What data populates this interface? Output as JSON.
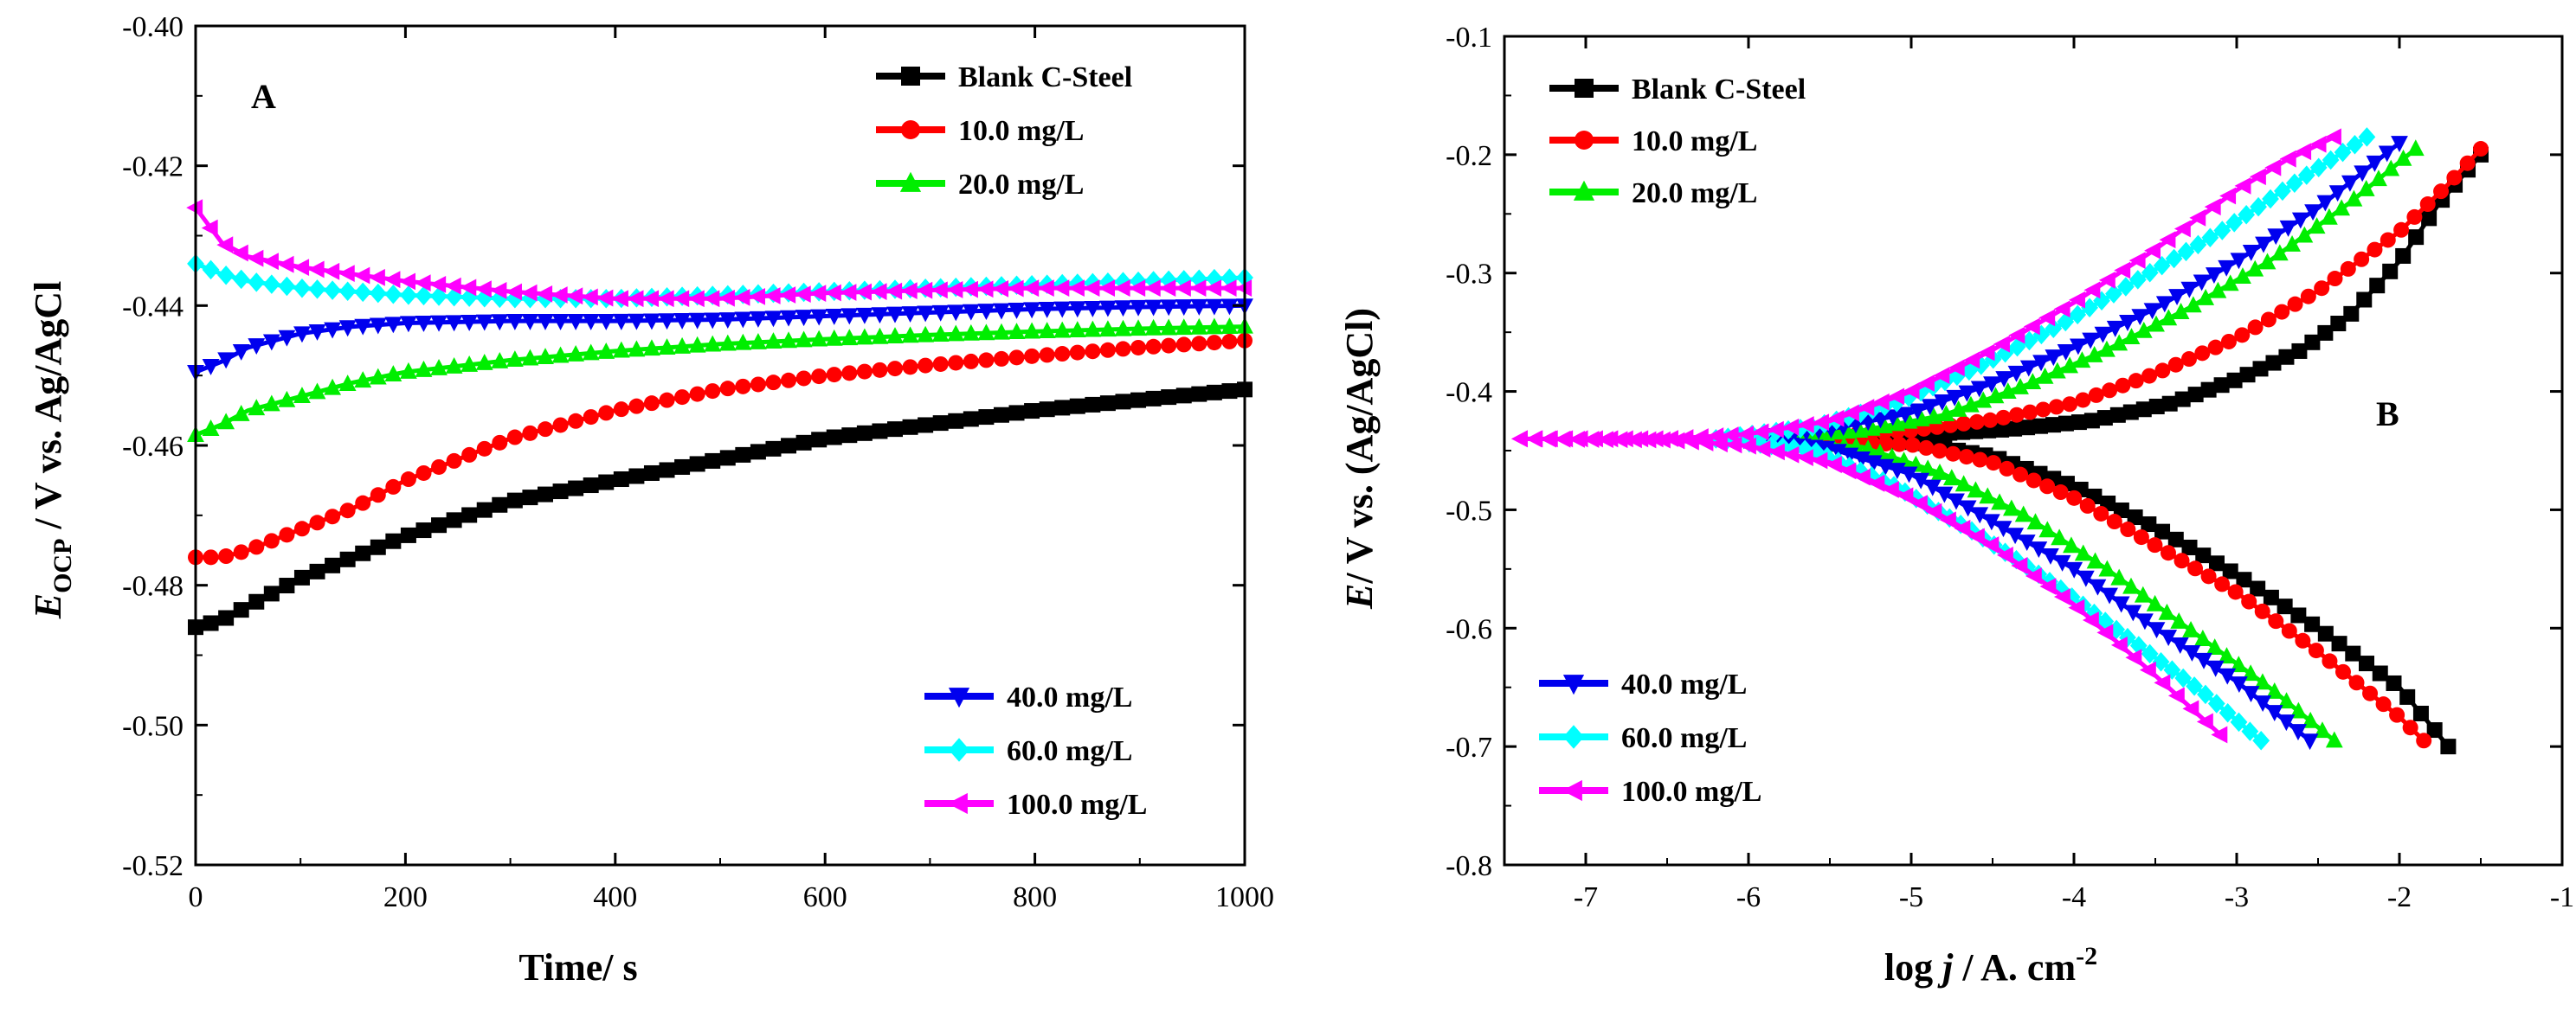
{
  "chart_data": [
    {
      "id": "A",
      "type": "line",
      "panel_label": "A",
      "xlabel": "Time/ s",
      "ylabel_main": "E",
      "ylabel_sub": "OCP",
      "ylabel_rest": " / V vs. Ag/AgCl",
      "xlim": [
        0,
        1000
      ],
      "ylim": [
        -0.52,
        -0.4
      ],
      "xticks": [
        0,
        200,
        400,
        600,
        800,
        1000
      ],
      "xtick_labels": [
        "0",
        "200",
        "400",
        "600",
        "800",
        "1000"
      ],
      "yticks": [
        -0.52,
        -0.5,
        -0.48,
        -0.46,
        -0.44,
        -0.42,
        -0.4
      ],
      "ytick_labels": [
        "-0.52",
        "-0.50",
        "-0.48",
        "-0.46",
        "-0.44",
        "-0.42",
        "-0.40"
      ],
      "legend_groups": [
        {
          "placement": "top-right",
          "series": [
            0,
            1,
            2
          ]
        },
        {
          "placement": "bottom-right",
          "series": [
            3,
            4,
            5
          ]
        }
      ],
      "series": [
        {
          "name": "Blank C-Steel",
          "color": "#000000",
          "marker": "square",
          "x": [
            0,
            25,
            50,
            100,
            150,
            200,
            300,
            400,
            500,
            600,
            700,
            800,
            900,
            1000
          ],
          "y": [
            -0.486,
            -0.485,
            -0.483,
            -0.479,
            -0.476,
            -0.473,
            -0.468,
            -0.465,
            -0.462,
            -0.459,
            -0.457,
            -0.455,
            -0.4535,
            -0.452
          ]
        },
        {
          "name": "10.0 mg/L",
          "color": "#ff0000",
          "marker": "circle",
          "x": [
            0,
            25,
            50,
            100,
            150,
            200,
            300,
            400,
            500,
            600,
            700,
            800,
            900,
            1000
          ],
          "y": [
            -0.476,
            -0.476,
            -0.475,
            -0.472,
            -0.469,
            -0.465,
            -0.459,
            -0.455,
            -0.452,
            -0.45,
            -0.4485,
            -0.4472,
            -0.446,
            -0.445
          ]
        },
        {
          "name": "20.0 mg/L",
          "color": "#00ee00",
          "marker": "triangle-up",
          "x": [
            0,
            25,
            50,
            100,
            150,
            200,
            300,
            400,
            500,
            600,
            700,
            800,
            900,
            1000
          ],
          "y": [
            -0.4585,
            -0.457,
            -0.455,
            -0.453,
            -0.451,
            -0.4495,
            -0.4478,
            -0.4465,
            -0.4455,
            -0.4448,
            -0.4442,
            -0.4437,
            -0.4433,
            -0.443
          ]
        },
        {
          "name": "40.0 mg/L",
          "color": "#0000ee",
          "marker": "triangle-down",
          "x": [
            0,
            25,
            50,
            100,
            150,
            200,
            300,
            400,
            500,
            600,
            700,
            800,
            900,
            1000
          ],
          "y": [
            -0.4495,
            -0.448,
            -0.446,
            -0.444,
            -0.443,
            -0.4425,
            -0.4422,
            -0.4422,
            -0.442,
            -0.4415,
            -0.441,
            -0.4405,
            -0.4402,
            -0.44
          ]
        },
        {
          "name": "60.0 mg/L",
          "color": "#00ffff",
          "marker": "diamond",
          "x": [
            0,
            25,
            50,
            100,
            150,
            200,
            300,
            400,
            500,
            600,
            700,
            800,
            900,
            1000
          ],
          "y": [
            -0.434,
            -0.4355,
            -0.4365,
            -0.4375,
            -0.438,
            -0.4385,
            -0.439,
            -0.439,
            -0.4385,
            -0.438,
            -0.4375,
            -0.437,
            -0.4365,
            -0.436
          ]
        },
        {
          "name": "100.0 mg/L",
          "color": "#ff00ff",
          "marker": "triangle-left",
          "x": [
            0,
            10,
            25,
            50,
            100,
            150,
            200,
            300,
            400,
            500,
            600,
            700,
            800,
            900,
            1000
          ],
          "y": [
            -0.426,
            -0.428,
            -0.431,
            -0.433,
            -0.4345,
            -0.4355,
            -0.4365,
            -0.438,
            -0.439,
            -0.439,
            -0.4382,
            -0.4378,
            -0.4375,
            -0.4375,
            -0.4375
          ]
        }
      ]
    },
    {
      "id": "B",
      "type": "line",
      "panel_label": "B",
      "xlabel_pre": "log ",
      "xlabel_var": "j",
      "xlabel_post": " /  A. cm",
      "xlabel_sup": "-2",
      "ylabel_var": "E",
      "ylabel_rest": "/ V vs. (Ag/AgCl)",
      "xlim": [
        -7.5,
        -1
      ],
      "ylim": [
        -0.8,
        -0.1
      ],
      "xticks": [
        -7,
        -6,
        -5,
        -4,
        -3,
        -2,
        -1
      ],
      "xtick_labels": [
        "-7",
        "-6",
        "-5",
        "-4",
        "-3",
        "-2",
        "-1"
      ],
      "yticks": [
        -0.8,
        -0.7,
        -0.6,
        -0.5,
        -0.4,
        -0.3,
        -0.2,
        -0.1
      ],
      "ytick_labels": [
        "-0.8",
        "-0.7",
        "-0.6",
        "-0.5",
        "-0.4",
        "-0.3",
        "-0.2",
        "-0.1"
      ],
      "legend_groups": [
        {
          "placement": "top-left",
          "series": [
            0,
            1,
            2
          ]
        },
        {
          "placement": "bottom-left",
          "series": [
            3,
            4,
            5
          ]
        }
      ],
      "series": [
        {
          "name": "Blank C-Steel",
          "color": "#000000",
          "marker": "square",
          "corr_potential": -0.44,
          "anodic": {
            "x": [
              -5.8,
              -5.0,
              -4.4,
              -3.9,
              -3.4,
              -3.0,
              -2.6,
              -2.3,
              -2.0,
              -1.75,
              -1.5
            ],
            "y": [
              -0.44,
              -0.437,
              -0.432,
              -0.425,
              -0.41,
              -0.39,
              -0.365,
              -0.335,
              -0.29,
              -0.24,
              -0.2
            ]
          },
          "cathodic": {
            "x": [
              -5.8,
              -5.0,
              -4.5,
              -4.0,
              -3.5,
              -3.0,
              -2.5,
              -2.0,
              -1.7
            ],
            "y": [
              -0.44,
              -0.443,
              -0.455,
              -0.48,
              -0.515,
              -0.555,
              -0.6,
              -0.65,
              -0.7
            ]
          }
        },
        {
          "name": "10.0 mg/L",
          "color": "#ff0000",
          "marker": "circle",
          "corr_potential": -0.44,
          "anodic": {
            "x": [
              -5.9,
              -5.0,
              -4.5,
              -4.0,
              -3.5,
              -3.0,
              -2.5,
              -2.0,
              -1.7,
              -1.5
            ],
            "y": [
              -0.44,
              -0.433,
              -0.424,
              -0.41,
              -0.385,
              -0.355,
              -0.315,
              -0.265,
              -0.225,
              -0.195
            ]
          },
          "cathodic": {
            "x": [
              -5.9,
              -5.0,
              -4.5,
              -4.0,
              -3.5,
              -3.0,
              -2.5,
              -2.0,
              -1.85
            ],
            "y": [
              -0.44,
              -0.445,
              -0.46,
              -0.49,
              -0.53,
              -0.57,
              -0.62,
              -0.675,
              -0.695
            ]
          }
        },
        {
          "name": "20.0 mg/L",
          "color": "#00ee00",
          "marker": "triangle-up",
          "corr_potential": -0.44,
          "anodic": {
            "x": [
              -6.0,
              -5.3,
              -4.8,
              -4.3,
              -3.8,
              -3.3,
              -2.8,
              -2.3,
              -1.9
            ],
            "y": [
              -0.44,
              -0.433,
              -0.42,
              -0.395,
              -0.365,
              -0.33,
              -0.29,
              -0.24,
              -0.195
            ]
          },
          "cathodic": {
            "x": [
              -6.0,
              -5.3,
              -4.8,
              -4.3,
              -3.8,
              -3.3,
              -2.8,
              -2.4
            ],
            "y": [
              -0.44,
              -0.447,
              -0.47,
              -0.505,
              -0.55,
              -0.6,
              -0.65,
              -0.695
            ]
          }
        },
        {
          "name": "40.0 mg/L",
          "color": "#0000ee",
          "marker": "triangle-down",
          "corr_potential": -0.44,
          "anodic": {
            "x": [
              -6.1,
              -5.5,
              -5.0,
              -4.5,
              -4.0,
              -3.5,
              -3.0,
              -2.5,
              -2.0
            ],
            "y": [
              -0.44,
              -0.432,
              -0.418,
              -0.393,
              -0.363,
              -0.33,
              -0.29,
              -0.245,
              -0.19
            ]
          },
          "cathodic": {
            "x": [
              -6.1,
              -5.5,
              -5.0,
              -4.5,
              -4.0,
              -3.5,
              -3.0,
              -2.55
            ],
            "y": [
              -0.44,
              -0.448,
              -0.47,
              -0.51,
              -0.55,
              -0.6,
              -0.645,
              -0.695
            ]
          }
        },
        {
          "name": "60.0 mg/L",
          "color": "#00ffff",
          "marker": "diamond",
          "corr_potential": -0.44,
          "anodic": {
            "x": [
              -6.2,
              -5.6,
              -5.1,
              -4.6,
              -4.1,
              -3.6,
              -3.1,
              -2.6,
              -2.2
            ],
            "y": [
              -0.44,
              -0.43,
              -0.41,
              -0.38,
              -0.345,
              -0.305,
              -0.265,
              -0.22,
              -0.185
            ]
          },
          "cathodic": {
            "x": [
              -6.2,
              -5.6,
              -5.1,
              -4.6,
              -4.1,
              -3.6,
              -3.2,
              -2.85
            ],
            "y": [
              -0.44,
              -0.45,
              -0.48,
              -0.52,
              -0.565,
              -0.615,
              -0.655,
              -0.695
            ]
          }
        },
        {
          "name": "100.0 mg/L",
          "color": "#ff00ff",
          "marker": "triangle-left",
          "corr_potential": -0.44,
          "anodic": {
            "x": [
              -7.4,
              -6.5,
              -6.0,
              -5.5,
              -5.0,
              -4.5,
              -4.0,
              -3.5,
              -3.0,
              -2.7,
              -2.4
            ],
            "y": [
              -0.44,
              -0.44,
              -0.436,
              -0.425,
              -0.4,
              -0.365,
              -0.325,
              -0.28,
              -0.23,
              -0.205,
              -0.185
            ]
          },
          "cathodic": {
            "x": [
              -7.4,
              -6.5,
              -6.0,
              -5.5,
              -5.0,
              -4.5,
              -4.0,
              -3.5,
              -3.1
            ],
            "y": [
              -0.44,
              -0.441,
              -0.446,
              -0.46,
              -0.49,
              -0.53,
              -0.58,
              -0.64,
              -0.69
            ]
          }
        }
      ]
    }
  ]
}
